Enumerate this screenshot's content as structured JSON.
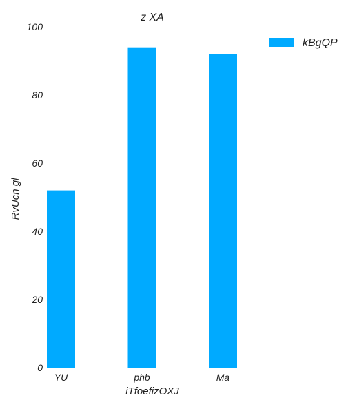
{
  "chart_data": {
    "type": "bar",
    "title": "z XA",
    "xlabel": "iTfoefizOXJ",
    "ylabel": "RvUcn gl",
    "categories": [
      "YU",
      "phb",
      "Ma"
    ],
    "series": [
      {
        "name": "kBgQP",
        "values": [
          52,
          94,
          92
        ],
        "color": "#00aaff"
      }
    ],
    "ylim": [
      0,
      100
    ],
    "yticks": [
      0,
      20,
      40,
      60,
      80,
      100
    ],
    "grid": false,
    "legend": "top-right"
  }
}
